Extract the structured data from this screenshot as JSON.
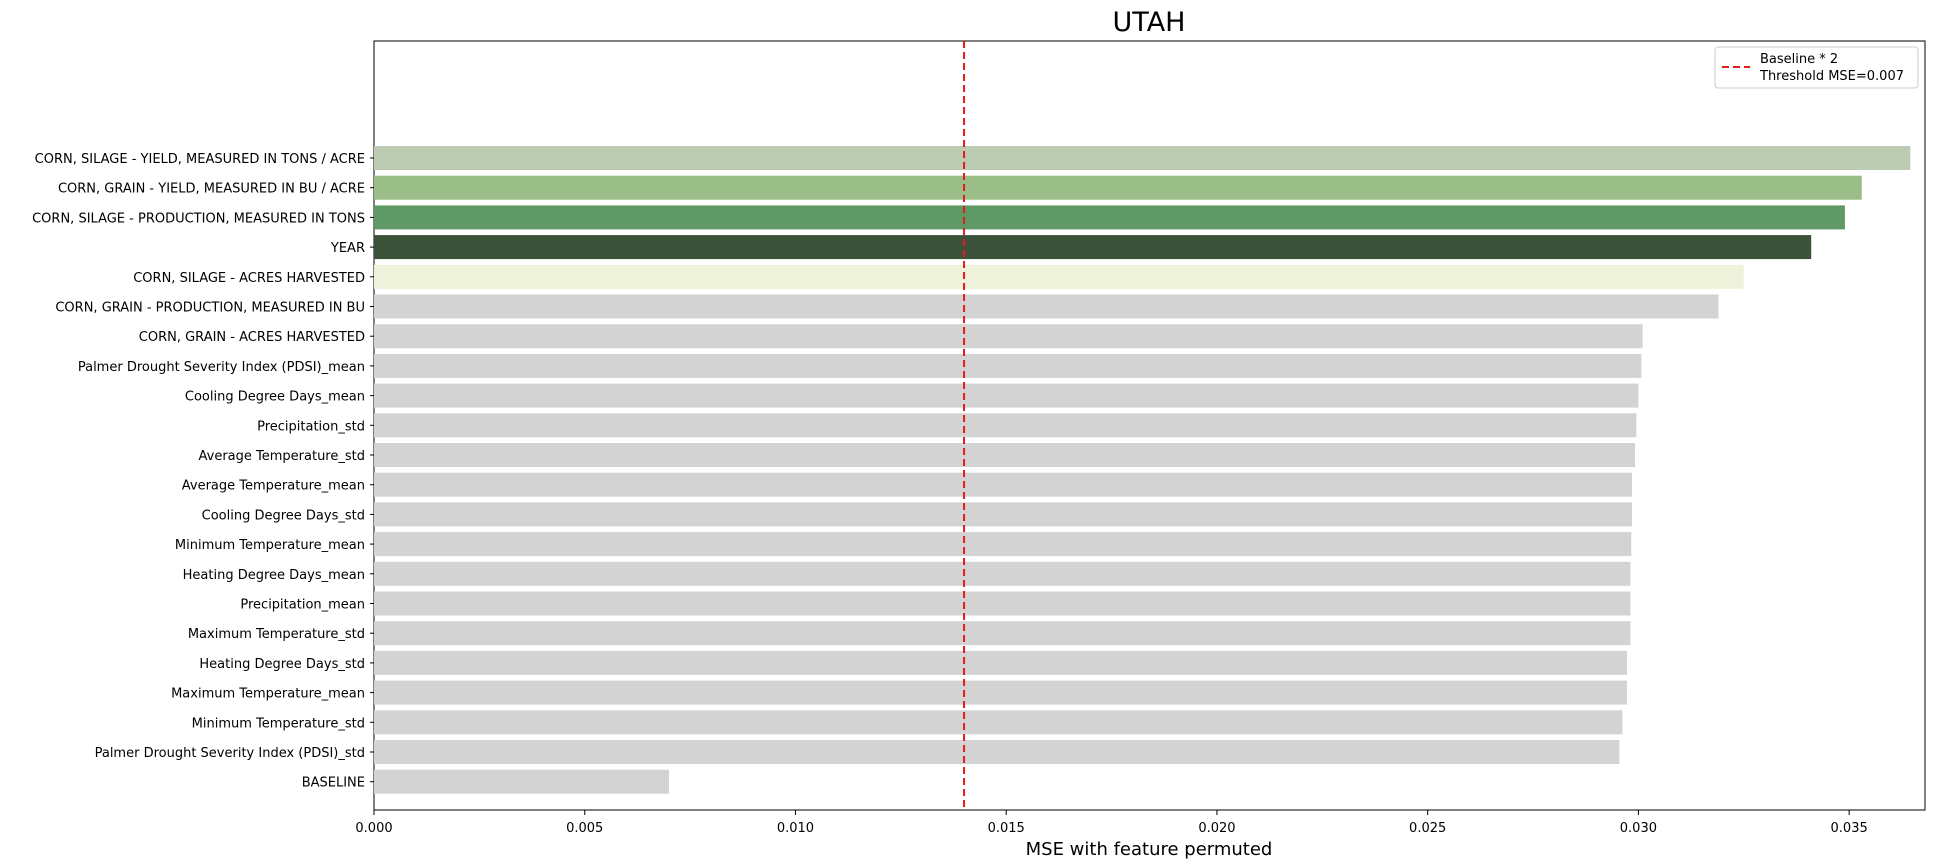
{
  "chart_data": {
    "type": "bar",
    "orientation": "horizontal",
    "title": "UTAH",
    "xlabel": "MSE with feature permuted",
    "ylabel": "",
    "xlim": [
      0,
      0.0368
    ],
    "xticks": [
      0.0,
      0.005,
      0.01,
      0.015,
      0.02,
      0.025,
      0.03,
      0.035
    ],
    "xtick_labels": [
      "0.000",
      "0.005",
      "0.010",
      "0.015",
      "0.020",
      "0.025",
      "0.030",
      "0.035"
    ],
    "grid": false,
    "legend_position": "top-right",
    "threshold": {
      "value": 0.014,
      "color": "#e41a1c",
      "style": "dashed",
      "legend_line1": "Baseline * 2",
      "legend_line2": "Threshold MSE=0.007"
    },
    "bars": [
      {
        "label": "CORN, SILAGE - YIELD, MEASURED IN TONS / ACRE",
        "value": 0.03645,
        "color": "#bccbb2"
      },
      {
        "label": "CORN, GRAIN - YIELD, MEASURED IN BU / ACRE",
        "value": 0.0353,
        "color": "#9bbd87"
      },
      {
        "label": "CORN, SILAGE - PRODUCTION, MEASURED IN TONS",
        "value": 0.0349,
        "color": "#5f9a66"
      },
      {
        "label": "YEAR",
        "value": 0.0341,
        "color": "#3c5139"
      },
      {
        "label": "CORN, SILAGE - ACRES HARVESTED",
        "value": 0.0325,
        "color": "#eef2da"
      },
      {
        "label": "CORN, GRAIN - PRODUCTION, MEASURED IN BU",
        "value": 0.0319,
        "color": "#d3d3d3"
      },
      {
        "label": "CORN, GRAIN - ACRES HARVESTED",
        "value": 0.0301,
        "color": "#d3d3d3"
      },
      {
        "label": "Palmer Drought Severity Index (PDSI)_mean",
        "value": 0.03007,
        "color": "#d3d3d3"
      },
      {
        "label": "Cooling Degree Days_mean",
        "value": 0.03,
        "color": "#d3d3d3"
      },
      {
        "label": "Precipitation_std",
        "value": 0.02995,
        "color": "#d3d3d3"
      },
      {
        "label": "Average Temperature_std",
        "value": 0.02992,
        "color": "#d3d3d3"
      },
      {
        "label": "Average Temperature_mean",
        "value": 0.02985,
        "color": "#d3d3d3"
      },
      {
        "label": "Cooling Degree Days_std",
        "value": 0.02985,
        "color": "#d3d3d3"
      },
      {
        "label": "Minimum Temperature_mean",
        "value": 0.02983,
        "color": "#d3d3d3"
      },
      {
        "label": "Heating Degree Days_mean",
        "value": 0.02981,
        "color": "#d3d3d3"
      },
      {
        "label": "Precipitation_mean",
        "value": 0.02981,
        "color": "#d3d3d3"
      },
      {
        "label": "Maximum Temperature_std",
        "value": 0.02981,
        "color": "#d3d3d3"
      },
      {
        "label": "Heating Degree Days_std",
        "value": 0.02973,
        "color": "#d3d3d3"
      },
      {
        "label": "Maximum Temperature_mean",
        "value": 0.02973,
        "color": "#d3d3d3"
      },
      {
        "label": "Minimum Temperature_std",
        "value": 0.02962,
        "color": "#d3d3d3"
      },
      {
        "label": "Palmer Drought Severity Index (PDSI)_std",
        "value": 0.02955,
        "color": "#d3d3d3"
      },
      {
        "label": "BASELINE",
        "value": 0.007,
        "color": "#d3d3d3"
      }
    ]
  }
}
